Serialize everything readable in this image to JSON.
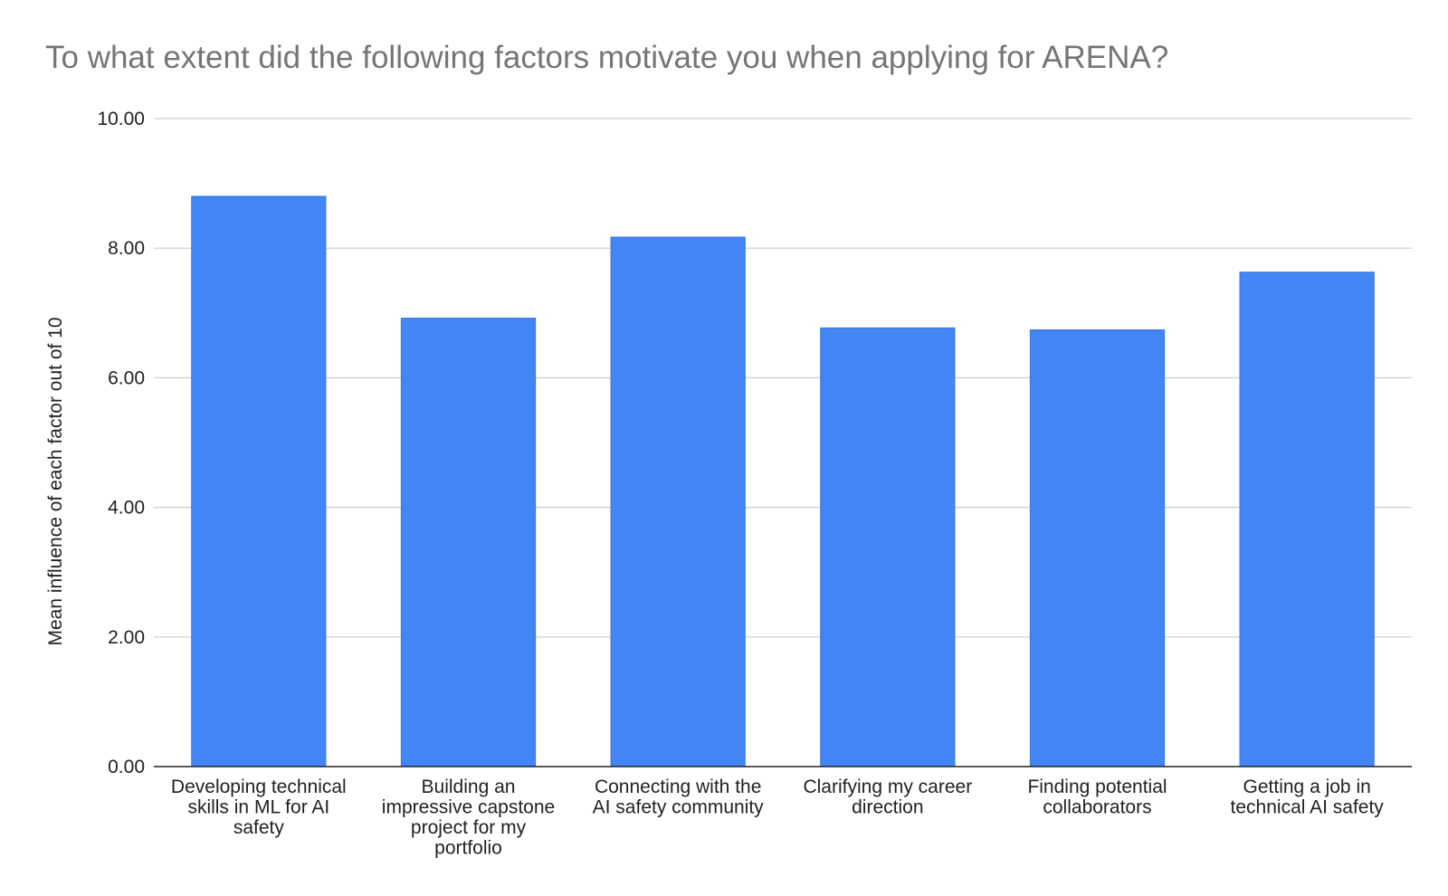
{
  "chart_data": {
    "type": "bar",
    "title": "To what extent did the following factors motivate you when applying for ARENA?",
    "xlabel": "",
    "ylabel": "Mean influence of each factor out of 10",
    "ylim": [
      0,
      10
    ],
    "yticks": [
      "0.00",
      "2.00",
      "4.00",
      "6.00",
      "8.00",
      "10.00"
    ],
    "grid": true,
    "legend": "none",
    "bar_color": "#4285F4",
    "categories": [
      [
        "Developing technical",
        "skills in ML for AI",
        "safety"
      ],
      [
        "Building an",
        "impressive capstone",
        "project for my",
        "portfolio"
      ],
      [
        "Connecting with the",
        "AI safety community"
      ],
      [
        "Clarifying my career",
        "direction"
      ],
      [
        "Finding potential",
        "collaborators"
      ],
      [
        "Getting a job in",
        "technical AI safety"
      ]
    ],
    "values": [
      8.8,
      6.92,
      8.17,
      6.77,
      6.74,
      7.63
    ]
  }
}
